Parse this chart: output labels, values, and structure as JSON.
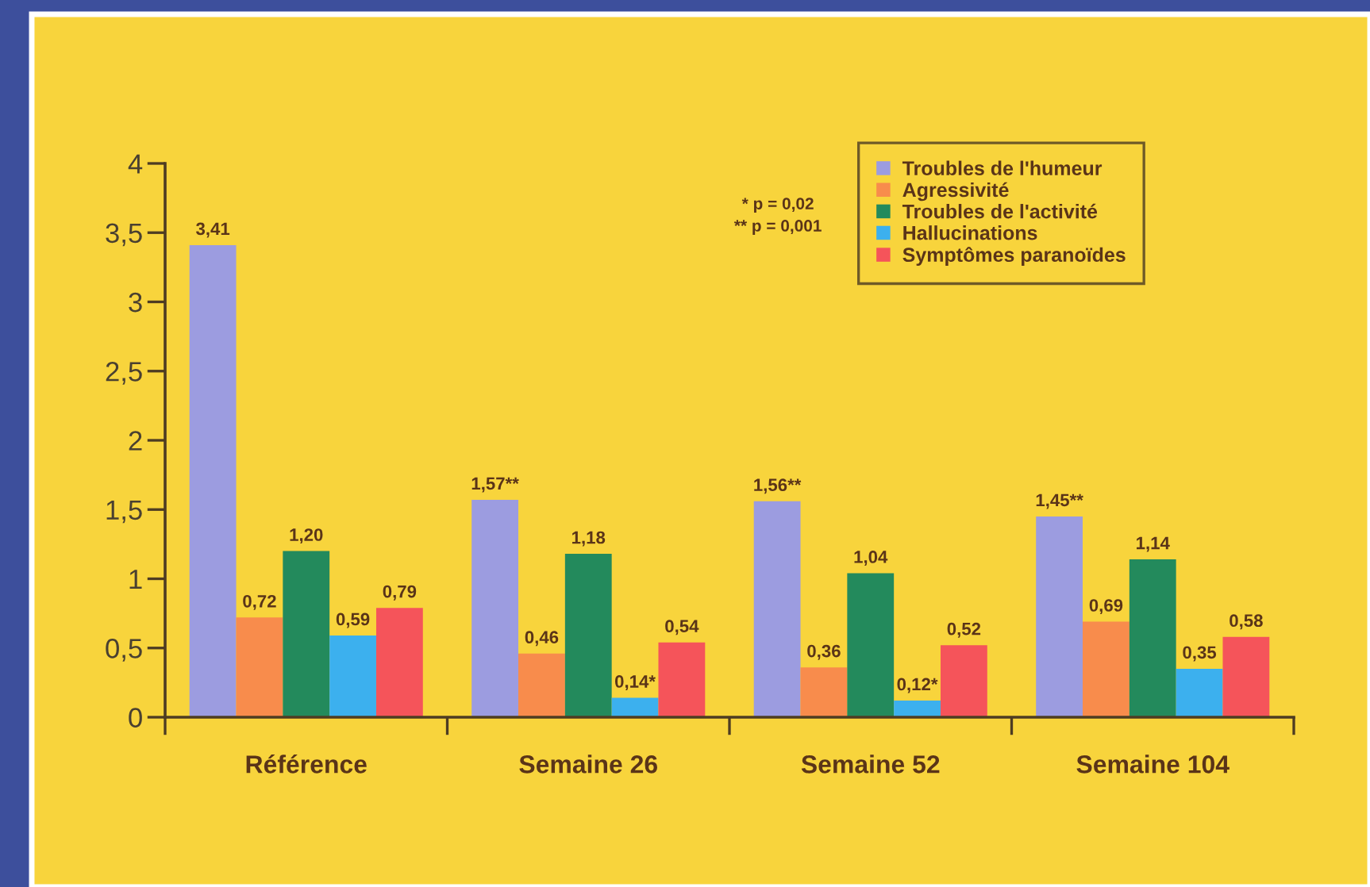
{
  "chart_data": {
    "type": "bar",
    "categories": [
      "Référence",
      "Semaine 26",
      "Semaine 52",
      "Semaine 104"
    ],
    "series": [
      {
        "name": "Troubles de l'humeur",
        "color": "#9c9ce0",
        "values": [
          3.41,
          1.57,
          1.56,
          1.45
        ],
        "value_labels": [
          "3,41",
          "1,57**",
          "1,56**",
          "1,45**"
        ]
      },
      {
        "name": "Agressivité",
        "color": "#f88c4c",
        "values": [
          0.72,
          0.46,
          0.36,
          0.69
        ],
        "value_labels": [
          "0,72",
          "0,46",
          "0,36",
          "0,69"
        ]
      },
      {
        "name": "Troubles de l'activité",
        "color": "#238a5c",
        "values": [
          1.2,
          1.18,
          1.04,
          1.14
        ],
        "value_labels": [
          "1,20",
          "1,18",
          "1,04",
          "1,14"
        ]
      },
      {
        "name": "Hallucinations",
        "color": "#3cb0ee",
        "values": [
          0.59,
          0.14,
          0.12,
          0.35
        ],
        "value_labels": [
          "0,59",
          "0,14*",
          "0,12*",
          "0,35"
        ]
      },
      {
        "name": "Symptômes paranoïdes",
        "color": "#f5545a",
        "values": [
          0.79,
          0.54,
          0.52,
          0.58
        ],
        "value_labels": [
          "0,79",
          "0,54",
          "0,52",
          "0,58"
        ]
      }
    ],
    "ylim": [
      0,
      4
    ],
    "yticks": [
      0,
      {
        "value": 0.5,
        "label": "0,5"
      },
      1,
      {
        "value": 1.5,
        "label": "1,5"
      },
      2,
      {
        "value": 2.5,
        "label": "2,5"
      },
      3,
      {
        "value": 3.5,
        "label": "3,5"
      },
      4
    ],
    "annotations": [
      "* p = 0,02",
      "** p = 0,001"
    ],
    "legend": "top right",
    "grid": false
  }
}
